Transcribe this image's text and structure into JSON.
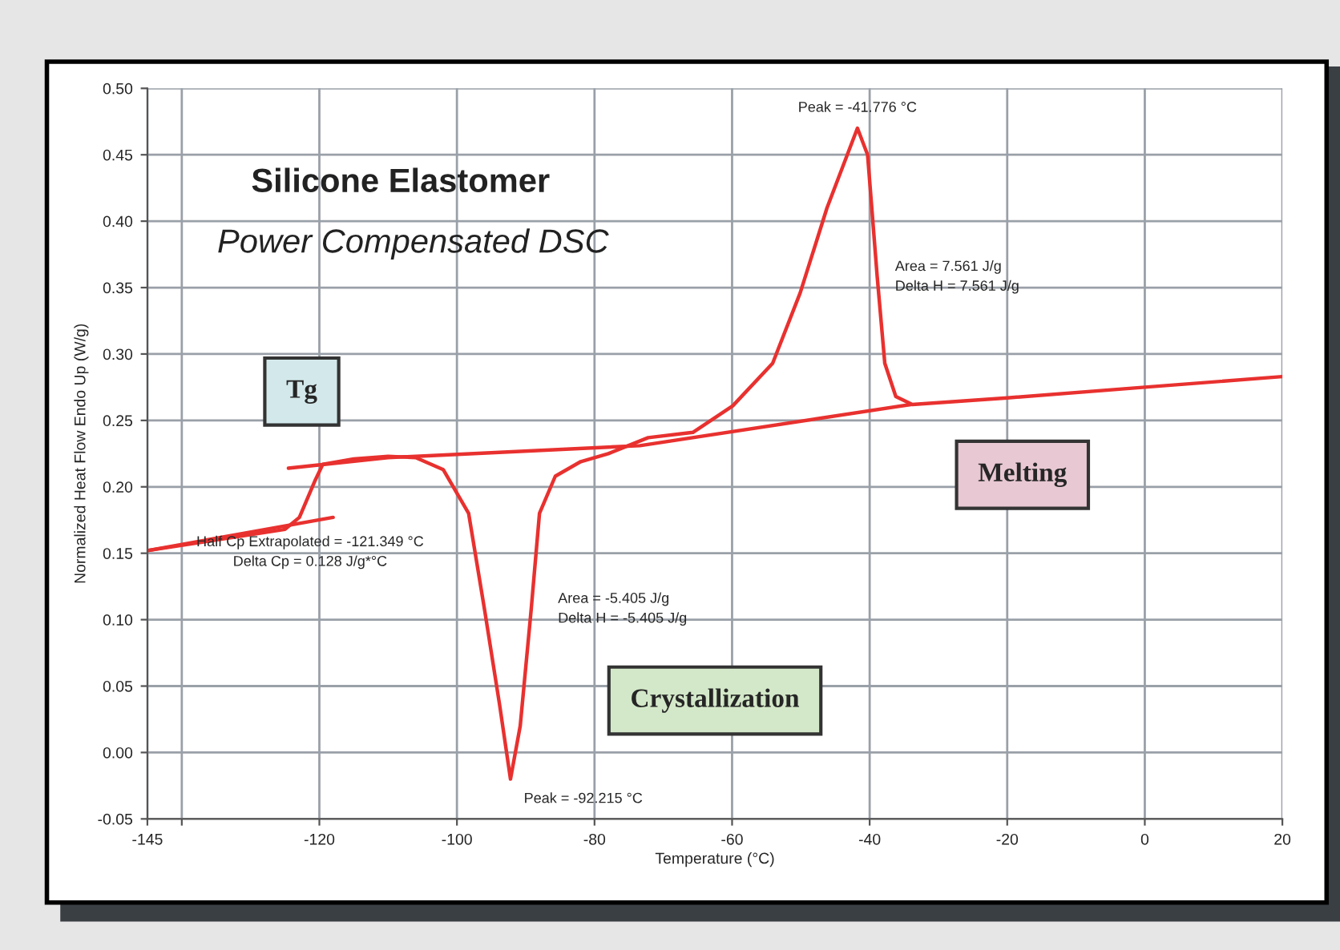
{
  "chart_data": {
    "type": "line",
    "title": "Silicone Elastomer",
    "subtitle": "Power Compensated DSC",
    "xlabel": "Temperature (°C)",
    "ylabel": "Normalized Heat Flow Endo Up (W/g)",
    "xlim": [
      -145,
      20
    ],
    "xticks": [
      -145,
      {
        "value": -140,
        "label": null
      },
      -120,
      -100,
      -80,
      -60,
      -40,
      -20,
      0,
      20
    ],
    "ylim": [
      -0.05,
      0.5
    ],
    "yticks": [
      -0.05,
      {
        "value": 0,
        "label": "0.00"
      },
      0.05,
      {
        "value": 0.1,
        "label": "0.10"
      },
      0.15,
      {
        "value": 0.2,
        "label": "0.20"
      },
      0.25,
      {
        "value": 0.3,
        "label": "0.30"
      },
      0.35,
      {
        "value": 0.4,
        "label": "0.40"
      },
      0.45,
      {
        "value": 0.5,
        "label": "0.50"
      }
    ],
    "grid": true,
    "legend": false,
    "marker": "none",
    "line_style": "solid",
    "series": [
      {
        "color": "#e8312f",
        "x": [
          -145,
          -135,
          -125,
          -122.9,
          -120.6,
          -119.5,
          -115,
          -110,
          -106,
          -102,
          -98.3,
          -96,
          -93.8,
          -92.215,
          -90.8,
          -89.2,
          -88,
          -85.7,
          -82,
          -78,
          -72.2,
          -65.7,
          -59.9,
          -54.1,
          -50.1,
          -46.2,
          -41.776,
          -40.3,
          -38.9,
          -37.8,
          -36.2,
          -33.8,
          -20,
          0,
          20
        ],
        "values": [
          0.152,
          0.16,
          0.168,
          0.177,
          0.205,
          0.217,
          0.221,
          0.223,
          0.222,
          0.213,
          0.18,
          0.108,
          0.036,
          -0.02,
          0.02,
          0.108,
          0.18,
          0.208,
          0.219,
          0.225,
          0.237,
          0.241,
          0.261,
          0.293,
          0.346,
          0.41,
          0.47,
          0.45,
          0.358,
          0.293,
          0.268,
          0.262,
          0.267,
          0.275,
          0.283
        ]
      },
      {
        "color": "#e8312f",
        "x": [
          -145,
          -118
        ],
        "values": [
          0.152,
          0.177
        ]
      },
      {
        "color": "#e8312f",
        "x": [
          -124.5,
          -110,
          -73.4,
          -34
        ],
        "values": [
          0.214,
          0.222,
          0.231,
          0.262
        ]
      }
    ],
    "annotations": [
      {
        "text": "Peak = -41.776 °C",
        "x": -41.776,
        "y": 0.47
      },
      {
        "text": "Area = 7.561 J/g\nDelta H = 7.561 J/g",
        "x": -38.9,
        "y": 0.358
      },
      {
        "text": "Half Cp Extrapolated = -121.349 °C\nDelta Cp = 0.128 J/g*°C",
        "x": -121.349,
        "y": 0.19
      },
      {
        "text": "Area = -5.405 J/g\nDelta H = -5.405 J/g",
        "x": -89.2,
        "y": 0.108
      },
      {
        "text": "Peak = -92.215 °C",
        "x": -92.215,
        "y": -0.02
      },
      "Tg",
      "Melting",
      "Crystallization"
    ]
  }
}
